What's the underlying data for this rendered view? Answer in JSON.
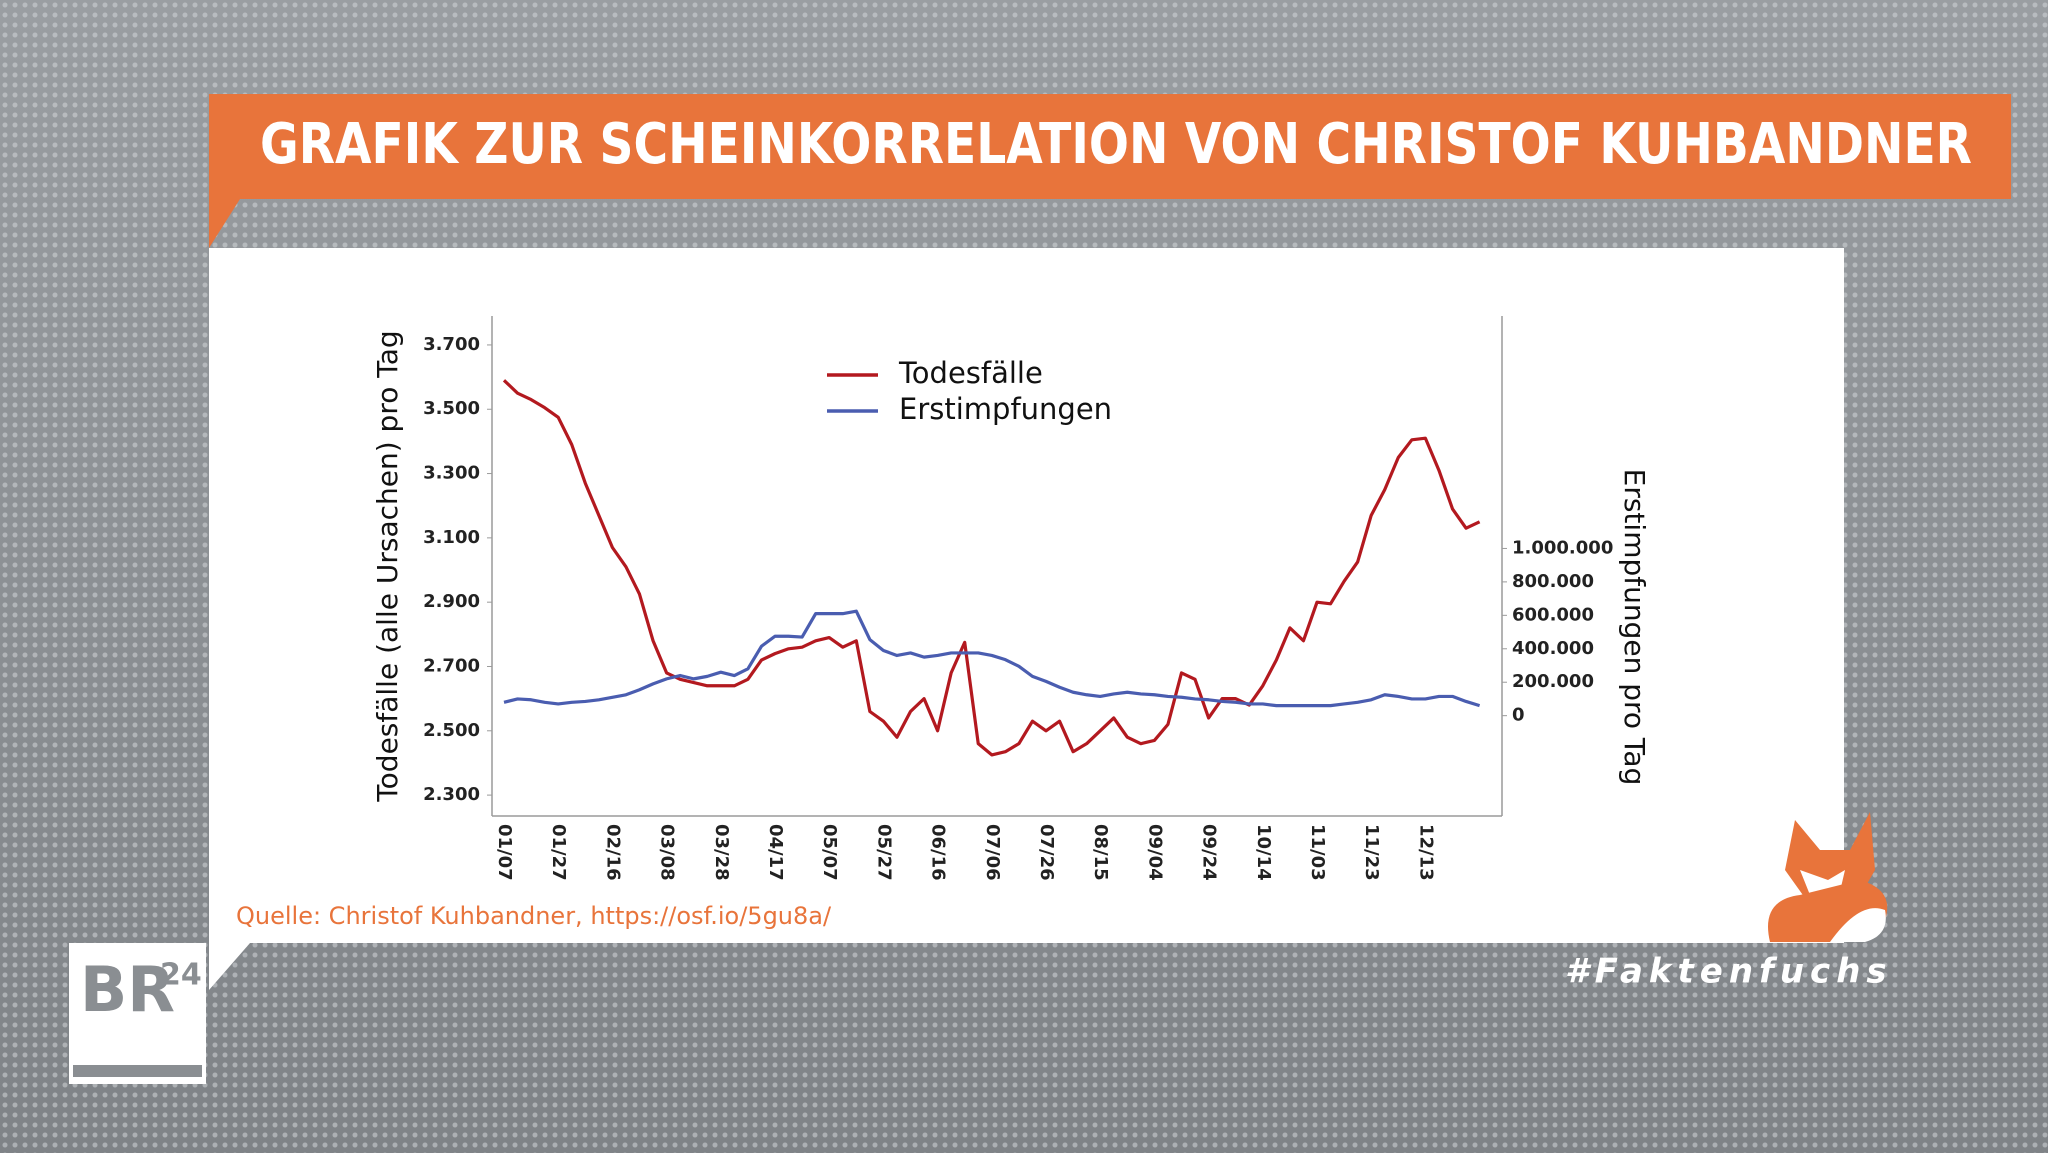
{
  "header": {
    "title": "GRAFIK ZUR SCHEINKORRELATION VON CHRISTOF KUHBANDNER"
  },
  "chart_data": {
    "type": "line",
    "y_label": "Todesfälle (alle Ursachen) pro Tag",
    "y2_label": "Erstimpfungen pro Tag",
    "categories": [
      "01/07",
      null,
      null,
      null,
      "01/27",
      null,
      null,
      null,
      "02/16",
      null,
      null,
      null,
      "03/08",
      null,
      null,
      null,
      "03/28",
      null,
      null,
      null,
      "04/17",
      null,
      null,
      null,
      "05/07",
      null,
      null,
      null,
      "05/27",
      null,
      null,
      null,
      "06/16",
      null,
      null,
      null,
      "07/06",
      null,
      null,
      null,
      "07/26",
      null,
      null,
      null,
      "08/15",
      null,
      null,
      null,
      "09/04",
      null,
      null,
      null,
      "09/24",
      null,
      null,
      null,
      "10/14",
      null,
      null,
      null,
      "11/03",
      null,
      null,
      null,
      "11/23",
      null,
      null,
      null,
      "12/13",
      null,
      null,
      null,
      null
    ],
    "series": [
      {
        "name": "Todesfälle",
        "color": "#b3191f",
        "values": [
          3590,
          3550,
          3530,
          3505,
          3475,
          3390,
          3270,
          3170,
          3070,
          3010,
          2925,
          2780,
          2680,
          2660,
          2650,
          2640,
          2640,
          2640,
          2660,
          2720,
          2740,
          2755,
          2760,
          2780,
          2790,
          2760,
          2780,
          2560,
          2530,
          2480,
          2560,
          2600,
          2500,
          2680,
          2775,
          2460,
          2425,
          2435,
          2460,
          2530,
          2500,
          2530,
          2435,
          2460,
          2500,
          2540,
          2480,
          2460,
          2470,
          2520,
          2680,
          2660,
          2540,
          2600,
          2600,
          2580,
          2640,
          2720,
          2820,
          2780,
          2900,
          2895,
          2965,
          3025,
          3170,
          3250,
          3350,
          3405,
          3410,
          3310,
          3190,
          3130,
          3150
        ]
      },
      {
        "name": "Erstimpfungen",
        "color": "#4a5db0",
        "axis": "y2",
        "values": [
          80000,
          100000,
          95000,
          80000,
          70000,
          80000,
          85000,
          95000,
          110000,
          125000,
          155000,
          190000,
          220000,
          240000,
          220000,
          235000,
          260000,
          240000,
          280000,
          415000,
          475000,
          475000,
          470000,
          610000,
          610000,
          610000,
          625000,
          455000,
          390000,
          360000,
          375000,
          350000,
          360000,
          375000,
          375000,
          375000,
          360000,
          335000,
          295000,
          235000,
          205000,
          170000,
          140000,
          125000,
          115000,
          130000,
          140000,
          130000,
          125000,
          115000,
          110000,
          100000,
          95000,
          85000,
          80000,
          70000,
          70000,
          60000,
          60000,
          60000,
          60000,
          60000,
          70000,
          80000,
          95000,
          125000,
          115000,
          100000,
          100000,
          115000,
          115000,
          85000,
          60000
        ]
      }
    ],
    "ylim": [
      2235,
      3790
    ],
    "yticks": [
      {
        "value": 2300,
        "label": "2.300"
      },
      {
        "value": 2500,
        "label": "2.500"
      },
      {
        "value": 2700,
        "label": "2.700"
      },
      {
        "value": 2900,
        "label": "2.900"
      },
      {
        "value": 3100,
        "label": "3.100"
      },
      {
        "value": 3300,
        "label": "3.300"
      },
      {
        "value": 3500,
        "label": "3.500"
      },
      {
        "value": 3700,
        "label": "3.700"
      }
    ],
    "y2lim": [
      -600000,
      2390000
    ],
    "y2ticks": [
      0,
      {
        "value": 200000,
        "label": "200.000"
      },
      {
        "value": 400000,
        "label": "400.000"
      },
      {
        "value": 600000,
        "label": "600.000"
      },
      {
        "value": 800000,
        "label": "800.000"
      },
      {
        "value": 1000000,
        "label": "1.000.000"
      }
    ],
    "grid": false
  },
  "source": "Quelle: Christof Kuhbandner, https://osf.io/5gu8a/",
  "logo": {
    "brand": "BR",
    "number": "24"
  },
  "hashtag": "#Faktenfuchs"
}
